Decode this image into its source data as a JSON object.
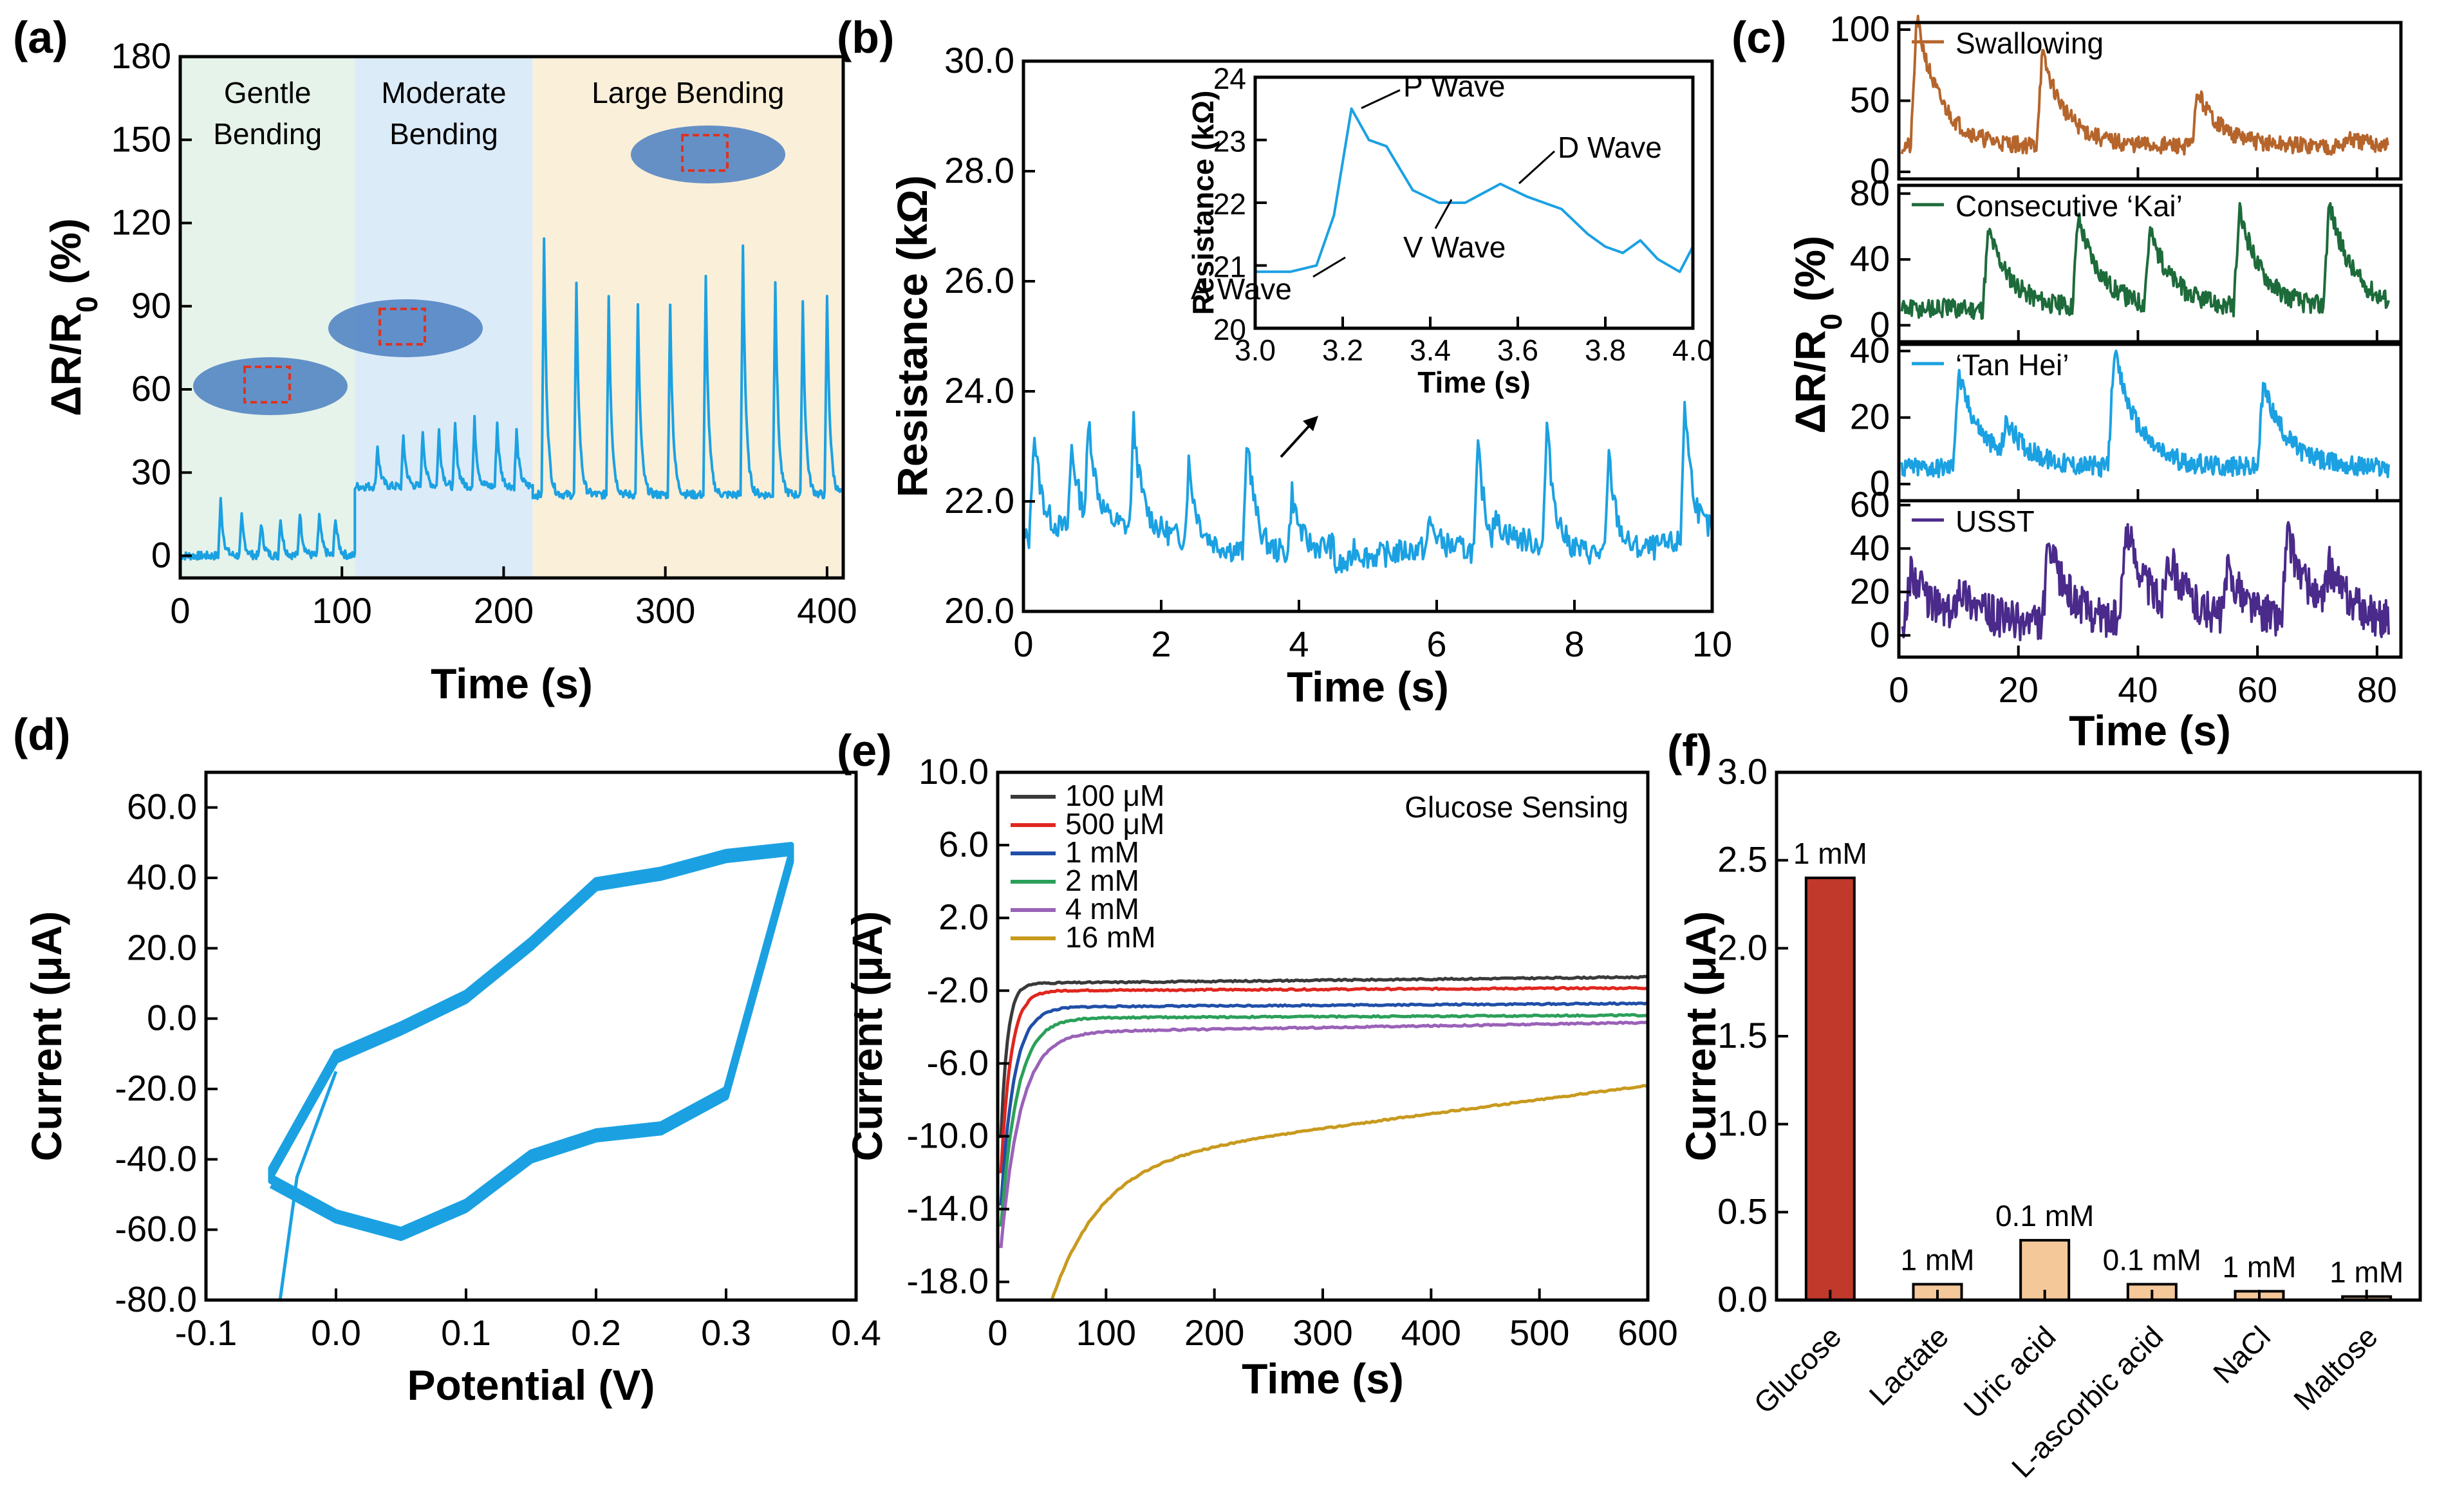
{
  "colors": {
    "cyan": "#1ba1e2",
    "brown": "#b5652c",
    "green": "#1d6b3a",
    "purple": "#4a2a8a",
    "glucose_bar": "#c0392b",
    "other_bar": "#f5c89a",
    "gentle_bg": "#e6f3ea",
    "moderate_bg": "#dcebf8",
    "large_bg": "#faefd9"
  },
  "panel_labels": [
    "(a)",
    "(b)",
    "(c)",
    "(d)",
    "(e)",
    "(f)"
  ],
  "chart_data": [
    {
      "id": "a",
      "type": "line",
      "xlabel": "Time (s)",
      "ylabel": "ΔR/R0 (%)",
      "xlim": [
        0,
        410
      ],
      "ylim": [
        -8,
        180
      ],
      "xticks": [
        0,
        100,
        200,
        300,
        400
      ],
      "yticks": [
        0,
        30,
        60,
        90,
        120,
        150,
        180
      ],
      "regions": [
        {
          "name": "Gentle\nBending",
          "from": 0,
          "to": 108
        },
        {
          "name": "Moderate\nBending",
          "from": 108,
          "to": 218
        },
        {
          "name": "Large Bending",
          "from": 218,
          "to": 410
        }
      ],
      "segments": [
        {
          "from": 0,
          "to": 108,
          "base": 0,
          "peaks": [
            25,
            38,
            50,
            62,
            74,
            86,
            96
          ],
          "heights": [
            20,
            14,
            12,
            14,
            16,
            15,
            14
          ]
        },
        {
          "from": 108,
          "to": 218,
          "base": 25,
          "peaks": [
            122,
            138,
            150,
            160,
            170,
            182,
            196,
            208
          ],
          "heights": [
            15,
            18,
            20,
            20,
            22,
            24,
            23,
            20
          ]
        },
        {
          "from": 218,
          "to": 410,
          "base": 22,
          "peaks": [
            225,
            245,
            265,
            283,
            303,
            325,
            348,
            368,
            385,
            400
          ],
          "heights": [
            92,
            75,
            72,
            68,
            68,
            78,
            90,
            78,
            70,
            72
          ]
        }
      ]
    },
    {
      "id": "b",
      "type": "line",
      "xlabel": "Time (s)",
      "ylabel": "Resistance (kΩ)",
      "xlim": [
        0,
        10
      ],
      "ylim": [
        20.0,
        30.0
      ],
      "xticks": [
        0,
        2,
        4,
        6,
        8,
        10
      ],
      "yticks": [
        "20.0",
        "22.0",
        "24.0",
        "26.0",
        "28.0",
        "30.0"
      ],
      "peaks": [
        {
          "t": 0.15,
          "v": 23.3
        },
        {
          "t": 0.7,
          "v": 22.8
        },
        {
          "t": 0.95,
          "v": 23.1
        },
        {
          "t": 1.6,
          "v": 23.2
        },
        {
          "t": 2.4,
          "v": 22.7
        },
        {
          "t": 3.25,
          "v": 23.5
        },
        {
          "t": 3.9,
          "v": 22.4
        },
        {
          "t": 4.8,
          "v": 21.6
        },
        {
          "t": 5.9,
          "v": 21.8
        },
        {
          "t": 6.6,
          "v": 23.2
        },
        {
          "t": 7.6,
          "v": 23.5
        },
        {
          "t": 8.5,
          "v": 23.1
        },
        {
          "t": 9.6,
          "v": 23.9
        }
      ],
      "inset": {
        "xlabel": "Time (s)",
        "ylabel": "Resistance (kΩ)",
        "xlim": [
          3.0,
          4.0
        ],
        "ylim": [
          20,
          24
        ],
        "xticks": [
          "3.0",
          "3.2",
          "3.4",
          "3.6",
          "3.8",
          "4.0"
        ],
        "yticks": [
          "20",
          "21",
          "22",
          "23",
          "24"
        ],
        "x": [
          3.0,
          3.08,
          3.14,
          3.18,
          3.22,
          3.26,
          3.3,
          3.36,
          3.42,
          3.48,
          3.56,
          3.62,
          3.7,
          3.76,
          3.8,
          3.84,
          3.88,
          3.92,
          3.97,
          4.0
        ],
        "y": [
          20.9,
          20.9,
          21.0,
          21.8,
          23.5,
          23.0,
          22.9,
          22.2,
          22.0,
          22.0,
          22.3,
          22.1,
          21.9,
          21.5,
          21.3,
          21.2,
          21.4,
          21.1,
          20.9,
          21.3
        ],
        "annotations": [
          "P Wave",
          "D Wave",
          "V Wave",
          "A Wave"
        ]
      }
    },
    {
      "id": "c",
      "type": "line",
      "shared_ylabel": "ΔR/R0 (%)",
      "xlabel": "Time (s)",
      "xlim": [
        0,
        84
      ],
      "xticks": [
        0,
        20,
        40,
        60,
        80
      ],
      "series": [
        {
          "name": "Swallowing",
          "ylim": [
            -5,
            105
          ],
          "yticks": [
            0,
            50,
            100
          ],
          "color_key": "brown"
        },
        {
          "name": "Consecutive ‘Kai’",
          "ylim": [
            -10,
            85
          ],
          "yticks": [
            0,
            40,
            80
          ],
          "color_key": "green"
        },
        {
          "name": "‘Tan Hei’",
          "ylim": [
            -5,
            42
          ],
          "yticks": [
            0,
            20,
            40
          ],
          "color_key": "cyan"
        },
        {
          "name": "USST",
          "ylim": [
            -10,
            62
          ],
          "yticks": [
            0,
            20,
            40,
            60
          ],
          "color_key": "purple"
        }
      ]
    },
    {
      "id": "d",
      "type": "line",
      "xlabel": "Potential (V)",
      "ylabel": "Current (μA)",
      "xlim": [
        -0.1,
        0.4
      ],
      "ylim": [
        -80,
        70
      ],
      "xticks": [
        "-0.1",
        "0.0",
        "0.1",
        "0.2",
        "0.3",
        "0.4"
      ],
      "yticks": [
        "-80.0",
        "-60.0",
        "-40.0",
        "-20.0",
        "0.0",
        "20.0",
        "40.0",
        "60.0"
      ],
      "upper_branch": {
        "x": [
          -0.05,
          0.0,
          0.05,
          0.1,
          0.15,
          0.2,
          0.25,
          0.3,
          0.35
        ],
        "y": [
          -45,
          -12,
          -4,
          5,
          20,
          37,
          40,
          45,
          47
        ]
      },
      "lower_branch": {
        "x": [
          0.35,
          0.3,
          0.25,
          0.2,
          0.15,
          0.1,
          0.05,
          0.0,
          -0.05
        ],
        "y": [
          47,
          -20,
          -30,
          -32,
          -38,
          -52,
          -60,
          -55,
          -45
        ]
      }
    },
    {
      "id": "e",
      "type": "line",
      "title": "Glucose Sensing",
      "xlabel": "Time (s)",
      "ylabel": "Current (μA)",
      "xlim": [
        0,
        600
      ],
      "ylim": [
        -19,
        10
      ],
      "xticks": [
        0,
        100,
        200,
        300,
        400,
        500,
        600
      ],
      "yticks": [
        "-18.0",
        "-14.0",
        "-10.0",
        "-6.0",
        "-2.0",
        "2.0",
        "6.0",
        "10.0"
      ],
      "series": [
        {
          "name": "100 μM",
          "color": "#3a3a3a",
          "steady": -1.6,
          "drift": 0.35
        },
        {
          "name": "500 μM",
          "color": "#e0261f",
          "steady": -2.0,
          "drift": 0.15
        },
        {
          "name": "1 mM",
          "color": "#1f4fa8",
          "steady": -2.9,
          "drift": 0.2
        },
        {
          "name": "2 mM",
          "color": "#2ca05a",
          "steady": -3.5,
          "drift": 0.15
        },
        {
          "name": "4 mM",
          "color": "#9a62b8",
          "steady": -4.3,
          "drift": 0.55
        },
        {
          "name": "16 mM",
          "color": "#c89a1e",
          "steady": -11.5,
          "drift": 4.3
        }
      ]
    },
    {
      "id": "f",
      "type": "bar",
      "ylabel": "Current (μA)",
      "ylim": [
        0,
        3.0
      ],
      "yticks": [
        "0.0",
        "0.5",
        "1.0",
        "1.5",
        "2.0",
        "2.5",
        "3.0"
      ],
      "categories": [
        "Glucose",
        "Lactate",
        "Uric acid",
        "L-ascorbic acid",
        "NaCl",
        "Maltose"
      ],
      "values": [
        2.4,
        0.09,
        0.34,
        0.09,
        0.05,
        0.02
      ],
      "bar_labels": [
        "1 mM",
        "1 mM",
        "0.1 mM",
        "0.1 mM",
        "1 mM",
        "1 mM"
      ]
    }
  ]
}
